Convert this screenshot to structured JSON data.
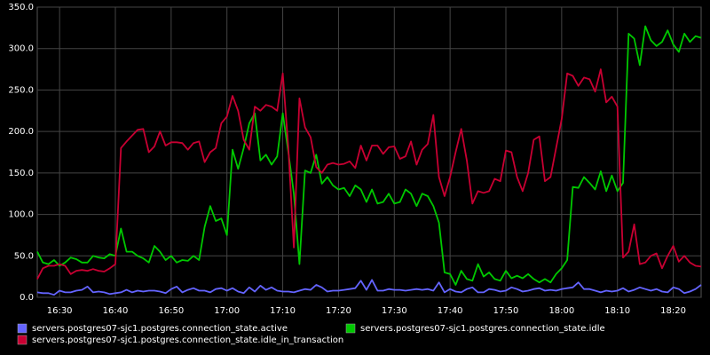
{
  "chart_data": {
    "type": "line",
    "x": [
      "16:26",
      "16:27",
      "16:28",
      "16:29",
      "16:30",
      "16:31",
      "16:32",
      "16:33",
      "16:34",
      "16:35",
      "16:36",
      "16:37",
      "16:38",
      "16:39",
      "16:40",
      "16:41",
      "16:42",
      "16:43",
      "16:44",
      "16:45",
      "16:46",
      "16:47",
      "16:48",
      "16:49",
      "16:50",
      "16:51",
      "16:52",
      "16:53",
      "16:54",
      "16:55",
      "16:56",
      "16:57",
      "16:58",
      "16:59",
      "17:00",
      "17:01",
      "17:02",
      "17:03",
      "17:04",
      "17:05",
      "17:06",
      "17:07",
      "17:08",
      "17:09",
      "17:10",
      "17:11",
      "17:12",
      "17:13",
      "17:14",
      "17:15",
      "17:16",
      "17:17",
      "17:18",
      "17:19",
      "17:20",
      "17:21",
      "17:22",
      "17:23",
      "17:24",
      "17:25",
      "17:26",
      "17:27",
      "17:28",
      "17:29",
      "17:30",
      "17:31",
      "17:32",
      "17:33",
      "17:34",
      "17:35",
      "17:36",
      "17:37",
      "17:38",
      "17:39",
      "17:40",
      "17:41",
      "17:42",
      "17:43",
      "17:44",
      "17:45",
      "17:46",
      "17:47",
      "17:48",
      "17:49",
      "17:50",
      "17:51",
      "17:52",
      "17:53",
      "17:54",
      "17:55",
      "17:56",
      "17:57",
      "17:58",
      "17:59",
      "18:00",
      "18:01",
      "18:02",
      "18:03",
      "18:04",
      "18:05",
      "18:06",
      "18:07",
      "18:08",
      "18:09",
      "18:10",
      "18:11",
      "18:12",
      "18:13",
      "18:14",
      "18:15",
      "18:16",
      "18:17",
      "18:18",
      "18:19",
      "18:20",
      "18:21",
      "18:22",
      "18:23",
      "18:24",
      "18:25"
    ],
    "xlim": [
      "16:26",
      "18:25"
    ],
    "xticks": [
      "16:30",
      "16:40",
      "16:50",
      "17:00",
      "17:10",
      "17:20",
      "17:30",
      "17:40",
      "17:50",
      "18:00",
      "18:10",
      "18:20"
    ],
    "ylim": [
      0,
      350
    ],
    "yticks": [
      {
        "value": 0,
        "label": "0.0"
      },
      {
        "value": 50,
        "label": "50.0"
      },
      {
        "value": 100,
        "label": "100.0"
      },
      {
        "value": 150,
        "label": "150.0"
      },
      {
        "value": 200,
        "label": "200.0"
      },
      {
        "value": 250,
        "label": "250.0"
      },
      {
        "value": 300,
        "label": "300.0"
      },
      {
        "value": 350,
        "label": "350.0"
      }
    ],
    "grid": true,
    "series": [
      {
        "name": "servers.postgres07-sjc1.postgres.connection_state.active",
        "color": "#6464ff",
        "values": [
          6,
          5,
          5,
          3,
          8,
          6,
          6,
          8,
          9,
          13,
          6,
          7,
          6,
          4,
          5,
          6,
          9,
          6,
          8,
          7,
          8,
          8,
          7,
          5,
          10,
          13,
          6,
          9,
          11,
          8,
          8,
          6,
          10,
          11,
          8,
          11,
          7,
          5,
          12,
          7,
          14,
          9,
          12,
          8,
          7,
          7,
          6,
          8,
          10,
          9,
          15,
          12,
          7,
          8,
          8,
          9,
          10,
          11,
          20,
          9,
          21,
          8,
          8,
          10,
          9,
          9,
          8,
          9,
          10,
          9,
          10,
          8,
          18,
          6,
          10,
          7,
          6,
          10,
          12,
          6,
          6,
          10,
          9,
          7,
          8,
          12,
          10,
          7,
          8,
          10,
          11,
          8,
          9,
          8,
          10,
          11,
          12,
          18,
          10,
          10,
          8,
          6,
          8,
          7,
          8,
          11,
          7,
          9,
          12,
          10,
          8,
          10,
          7,
          6,
          12,
          10,
          5,
          7,
          10,
          15
        ]
      },
      {
        "name": "servers.postgres07-sjc1.postgres.connection_state.idle",
        "color": "#00c800",
        "values": [
          55,
          42,
          40,
          45,
          38,
          42,
          48,
          46,
          42,
          42,
          50,
          48,
          47,
          52,
          50,
          83,
          55,
          55,
          50,
          47,
          42,
          62,
          55,
          45,
          50,
          42,
          45,
          44,
          50,
          45,
          85,
          110,
          92,
          95,
          75,
          178,
          155,
          180,
          210,
          222,
          165,
          172,
          160,
          170,
          222,
          175,
          125,
          40,
          153,
          150,
          172,
          137,
          145,
          135,
          130,
          132,
          122,
          135,
          130,
          115,
          130,
          113,
          115,
          125,
          113,
          115,
          130,
          125,
          110,
          125,
          122,
          110,
          90,
          30,
          28,
          15,
          32,
          22,
          20,
          40,
          25,
          30,
          22,
          20,
          32,
          23,
          26,
          23,
          28,
          22,
          18,
          22,
          18,
          28,
          35,
          45,
          133,
          132,
          145,
          138,
          130,
          152,
          128,
          147,
          128,
          138,
          318,
          312,
          280,
          327,
          310,
          303,
          308,
          322,
          305,
          296,
          318,
          308,
          315,
          313
        ]
      },
      {
        "name": "servers.postgres07-sjc1.postgres.connection_state.idle_in_transaction",
        "color": "#c80032",
        "values": [
          22,
          35,
          38,
          38,
          40,
          38,
          28,
          32,
          33,
          32,
          34,
          32,
          31,
          35,
          40,
          180,
          188,
          195,
          202,
          203,
          175,
          182,
          200,
          183,
          187,
          187,
          186,
          178,
          186,
          188,
          163,
          175,
          180,
          210,
          218,
          243,
          225,
          190,
          178,
          230,
          225,
          232,
          230,
          225,
          270,
          180,
          60,
          240,
          205,
          193,
          157,
          150,
          160,
          162,
          160,
          161,
          164,
          156,
          183,
          165,
          183,
          183,
          173,
          181,
          182,
          167,
          170,
          188,
          160,
          178,
          185,
          220,
          145,
          122,
          145,
          175,
          203,
          165,
          113,
          128,
          126,
          128,
          143,
          140,
          177,
          175,
          145,
          128,
          150,
          190,
          194,
          140,
          145,
          180,
          215,
          270,
          267,
          255,
          265,
          263,
          248,
          275,
          235,
          242,
          230,
          48,
          55,
          88,
          40,
          42,
          50,
          53,
          35,
          50,
          62,
          43,
          50,
          42,
          38,
          37
        ]
      }
    ]
  }
}
